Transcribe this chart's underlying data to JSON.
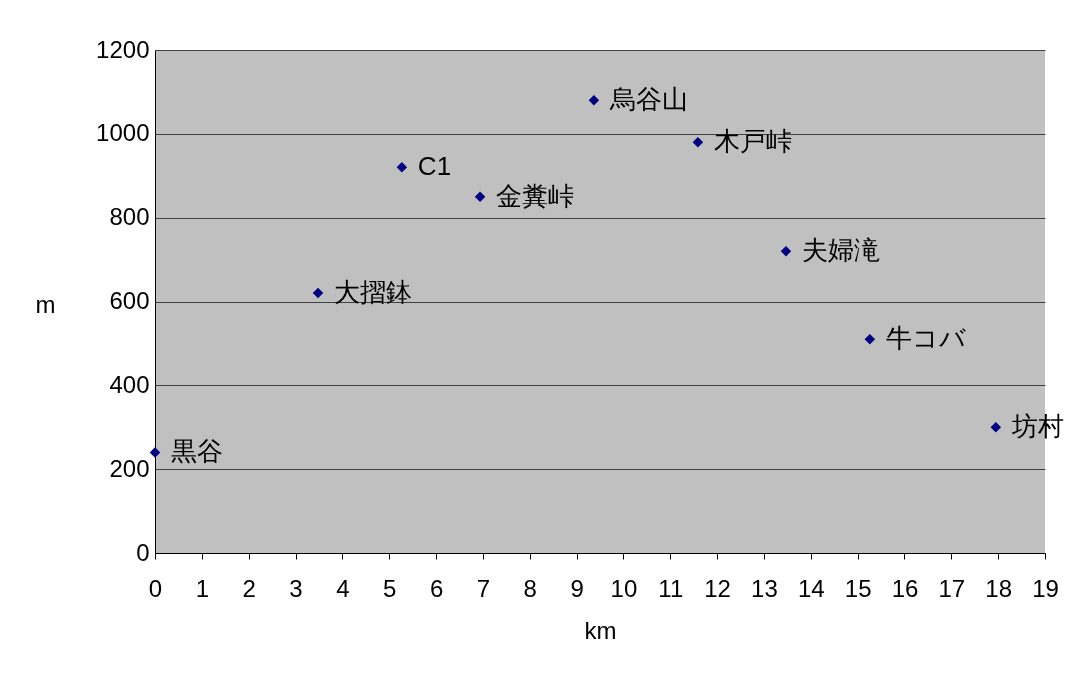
{
  "chart_data": {
    "type": "scatter",
    "xlabel": "km",
    "ylabel": "m",
    "x": [
      0,
      3.48,
      5.27,
      6.94,
      9.37,
      11.59,
      13.47,
      15.26,
      17.95
    ],
    "series": [
      {
        "color": "#000080",
        "values": [
          240,
          620,
          920,
          850,
          1080,
          980,
          720,
          510,
          300
        ]
      }
    ],
    "xlim": [
      0,
      19
    ],
    "xticks": [
      0,
      1,
      2,
      3,
      4,
      5,
      6,
      7,
      8,
      9,
      10,
      11,
      12,
      13,
      14,
      15,
      16,
      17,
      18,
      19
    ],
    "ylim": [
      0,
      1200
    ],
    "yticks": [
      0,
      200,
      400,
      600,
      800,
      1000,
      1200
    ],
    "grid": "y",
    "marker": "diamond",
    "annotations": [
      {
        "text": "黒谷",
        "x": 0,
        "y": 240
      },
      {
        "text": "大摺鉢",
        "x": 3.48,
        "y": 620
      },
      {
        "text": "C1",
        "x": 5.27,
        "y": 920
      },
      {
        "text": "金糞峠",
        "x": 6.94,
        "y": 850
      },
      {
        "text": "烏谷山",
        "x": 9.37,
        "y": 1080
      },
      {
        "text": "木戸峠",
        "x": 11.59,
        "y": 980
      },
      {
        "text": "夫婦滝",
        "x": 13.47,
        "y": 720
      },
      {
        "text": "牛コバ",
        "x": 15.26,
        "y": 510
      },
      {
        "text": "坊村",
        "x": 17.95,
        "y": 300
      }
    ]
  }
}
